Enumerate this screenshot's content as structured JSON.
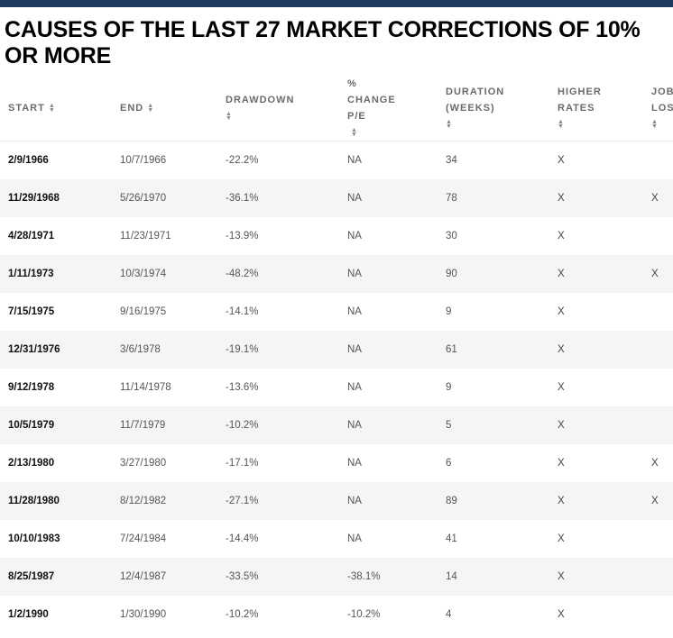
{
  "title": "CAUSES OF THE LAST 27 MARKET CORRECTIONS OF 10% OR MORE",
  "colors": {
    "topbar": "#1e3a5f",
    "stripe": "#f5f5f5"
  },
  "headers": [
    {
      "lines": [
        "START"
      ],
      "sort": true
    },
    {
      "lines": [
        "END"
      ],
      "sort": true
    },
    {
      "lines": [
        "DRAWDOWN"
      ],
      "sort": true
    },
    {
      "lines": [
        "%",
        "CHANGE",
        "P/E"
      ],
      "sort": true
    },
    {
      "lines": [
        "DURATION",
        "(WEEKS)"
      ],
      "sort": true
    },
    {
      "lines": [
        "HIGHER",
        "RATES"
      ],
      "sort": true
    },
    {
      "lines": [
        "JOB",
        "LOSS"
      ],
      "sort": true
    }
  ],
  "rows": [
    [
      "2/9/1966",
      "10/7/1966",
      "-22.2%",
      "NA",
      "34",
      "X",
      ""
    ],
    [
      "11/29/1968",
      "5/26/1970",
      "-36.1%",
      "NA",
      "78",
      "X",
      "X"
    ],
    [
      "4/28/1971",
      "11/23/1971",
      "-13.9%",
      "NA",
      "30",
      "X",
      ""
    ],
    [
      "1/11/1973",
      "10/3/1974",
      "-48.2%",
      "NA",
      "90",
      "X",
      "X"
    ],
    [
      "7/15/1975",
      "9/16/1975",
      "-14.1%",
      "NA",
      "9",
      "X",
      ""
    ],
    [
      "12/31/1976",
      "3/6/1978",
      "-19.1%",
      "NA",
      "61",
      "X",
      ""
    ],
    [
      "9/12/1978",
      "11/14/1978",
      "-13.6%",
      "NA",
      "9",
      "X",
      ""
    ],
    [
      "10/5/1979",
      "11/7/1979",
      "-10.2%",
      "NA",
      "5",
      "X",
      ""
    ],
    [
      "2/13/1980",
      "3/27/1980",
      "-17.1%",
      "NA",
      "6",
      "X",
      "X"
    ],
    [
      "11/28/1980",
      "8/12/1982",
      "-27.1%",
      "NA",
      "89",
      "X",
      "X"
    ],
    [
      "10/10/1983",
      "7/24/1984",
      "-14.4%",
      "NA",
      "41",
      "X",
      ""
    ],
    [
      "8/25/1987",
      "12/4/1987",
      "-33.5%",
      "-38.1%",
      "14",
      "X",
      ""
    ],
    [
      "1/2/1990",
      "1/30/1990",
      "-10.2%",
      "-10.2%",
      "4",
      "X",
      ""
    ]
  ]
}
